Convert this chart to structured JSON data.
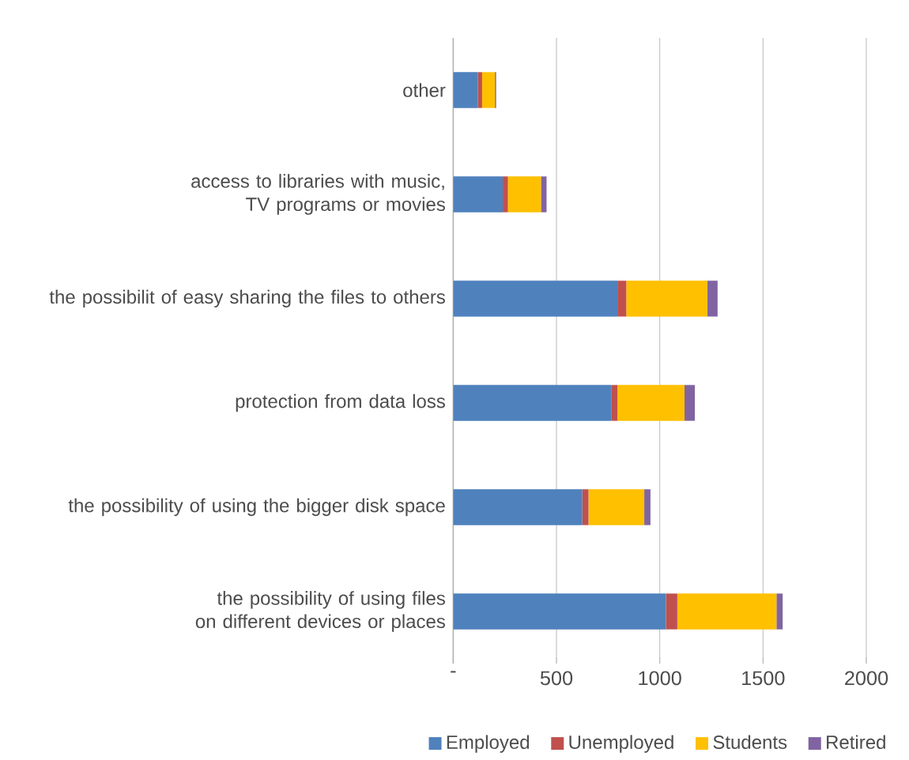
{
  "chart_data": {
    "type": "bar",
    "orientation": "horizontal",
    "stacked": true,
    "categories": [
      "other",
      "access to libraries with music, TV programs or movies",
      "the possibilit of easy sharing the files to others",
      "protection from data loss",
      "the possibility of using the bigger disk space",
      "the possibility of using files on different devices or places"
    ],
    "series": [
      {
        "name": "Employed",
        "color": "#4f81bd",
        "values": [
          120,
          240,
          795,
          765,
          625,
          1030
        ]
      },
      {
        "name": "Unemployed",
        "color": "#c0504d",
        "values": [
          20,
          25,
          43,
          30,
          30,
          55
        ]
      },
      {
        "name": "Students",
        "color": "#ffc000",
        "values": [
          62,
          160,
          392,
          325,
          270,
          480
        ]
      },
      {
        "name": "Retired",
        "color": "#8064a2",
        "values": [
          6,
          27,
          50,
          50,
          30,
          30
        ]
      }
    ],
    "xlim": [
      0,
      2000
    ],
    "xticks": [
      {
        "value": 0,
        "label": "-"
      },
      500,
      1000,
      1500,
      2000
    ],
    "grid": "x",
    "legend": "bottom"
  }
}
